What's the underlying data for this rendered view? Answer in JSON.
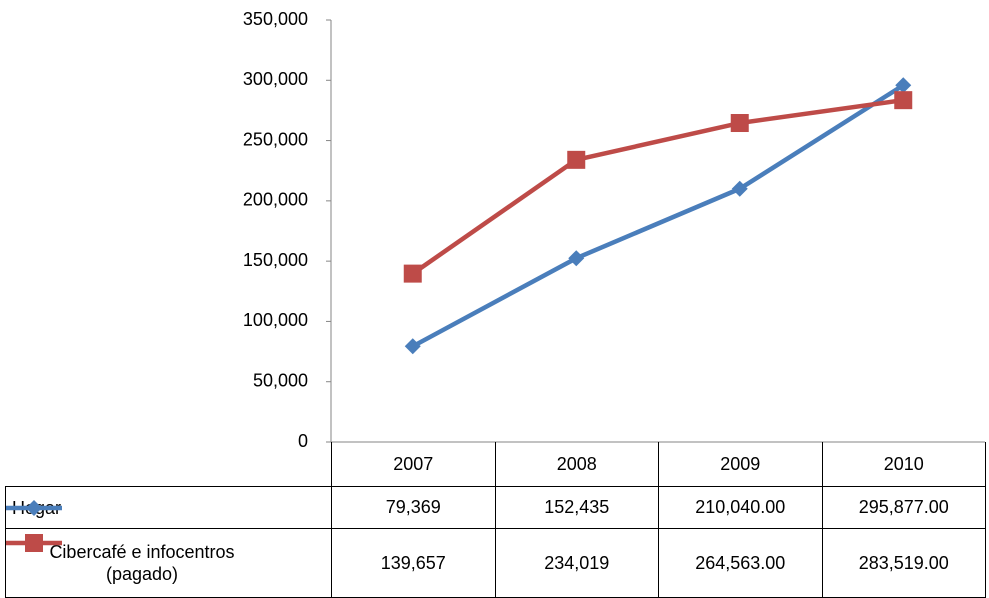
{
  "chart_data": {
    "type": "line",
    "categories": [
      "2007",
      "2008",
      "2009",
      "2010"
    ],
    "series": [
      {
        "name": "Hogar",
        "color": "#4a7ebb",
        "marker": "diamond",
        "values": [
          79369,
          152435,
          210040,
          295877
        ],
        "value_labels": [
          "79,369",
          "152,435",
          "210,040.00",
          "295,877.00"
        ]
      },
      {
        "name": "Cibercafé e infocentros (pagado)",
        "color": "#be4b48",
        "marker": "square",
        "values": [
          139657,
          234019,
          264563,
          283519
        ],
        "value_labels": [
          "139,657",
          "234,019",
          "264,563.00",
          "283,519.00"
        ]
      }
    ],
    "ylim": [
      0,
      350000
    ],
    "yticks": [
      0,
      {
        "value": 50000,
        "label": "50,000"
      },
      {
        "value": 100000,
        "label": "100,000"
      },
      {
        "value": 150000,
        "label": "150,000"
      },
      {
        "value": 200000,
        "label": "200,000"
      },
      {
        "value": 250000,
        "label": "250,000"
      },
      {
        "value": 300000,
        "label": "300,000"
      },
      {
        "value": 350000,
        "label": "350,000"
      }
    ],
    "grid": false,
    "data_table": true
  }
}
